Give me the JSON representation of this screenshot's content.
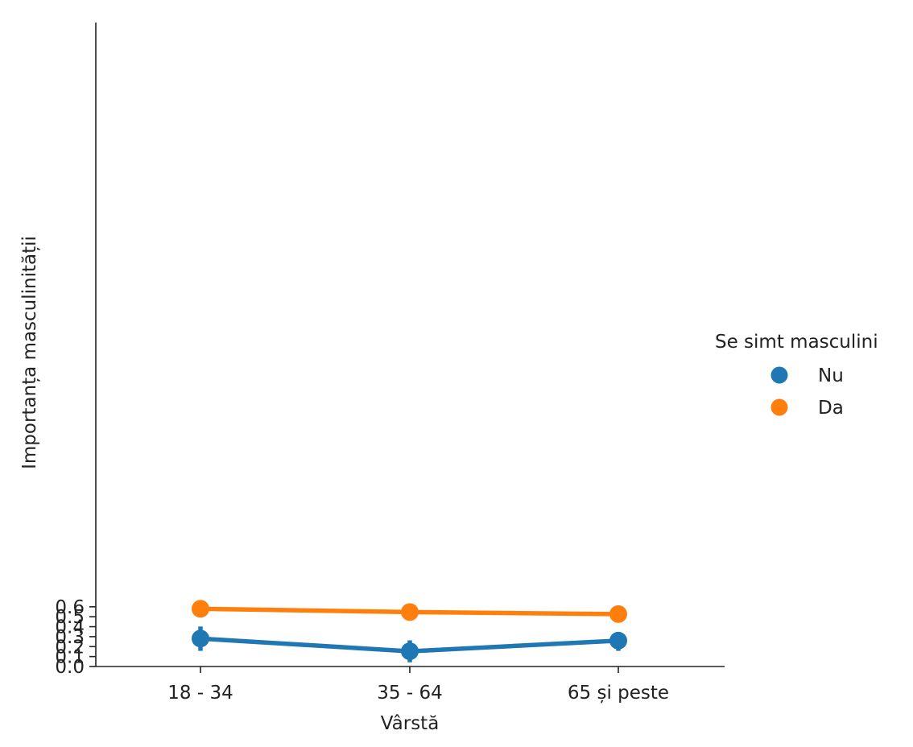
{
  "chart_data": {
    "type": "line",
    "categories": [
      "18 - 34",
      "35 - 64",
      "65 și peste"
    ],
    "xlabel": "Vârstă",
    "ylabel": "Importanța masculinității",
    "ylim": [
      0.0,
      0.65
    ],
    "yticks": [
      "0.0",
      "0.1",
      "0.2",
      "0.3",
      "0.4",
      "0.5",
      "0.6"
    ],
    "ytick_values": [
      0.0,
      0.1,
      0.2,
      0.3,
      0.4,
      0.5,
      0.6
    ],
    "grid": false,
    "legend": {
      "title": "Se simt masculini",
      "placement": "right"
    },
    "series": [
      {
        "name": "Nu",
        "color": "#1f77b4",
        "values": [
          0.281,
          0.153,
          0.26
        ],
        "ci_low": [
          0.157,
          0.042,
          0.157
        ],
        "ci_high": [
          0.402,
          0.263,
          0.348
        ]
      },
      {
        "name": "Da",
        "color": "#ff7f0e",
        "values": [
          0.58,
          0.547,
          0.527
        ],
        "ci_low": [
          0.523,
          0.497,
          0.483
        ],
        "ci_high": [
          0.634,
          0.587,
          0.566
        ]
      }
    ]
  }
}
